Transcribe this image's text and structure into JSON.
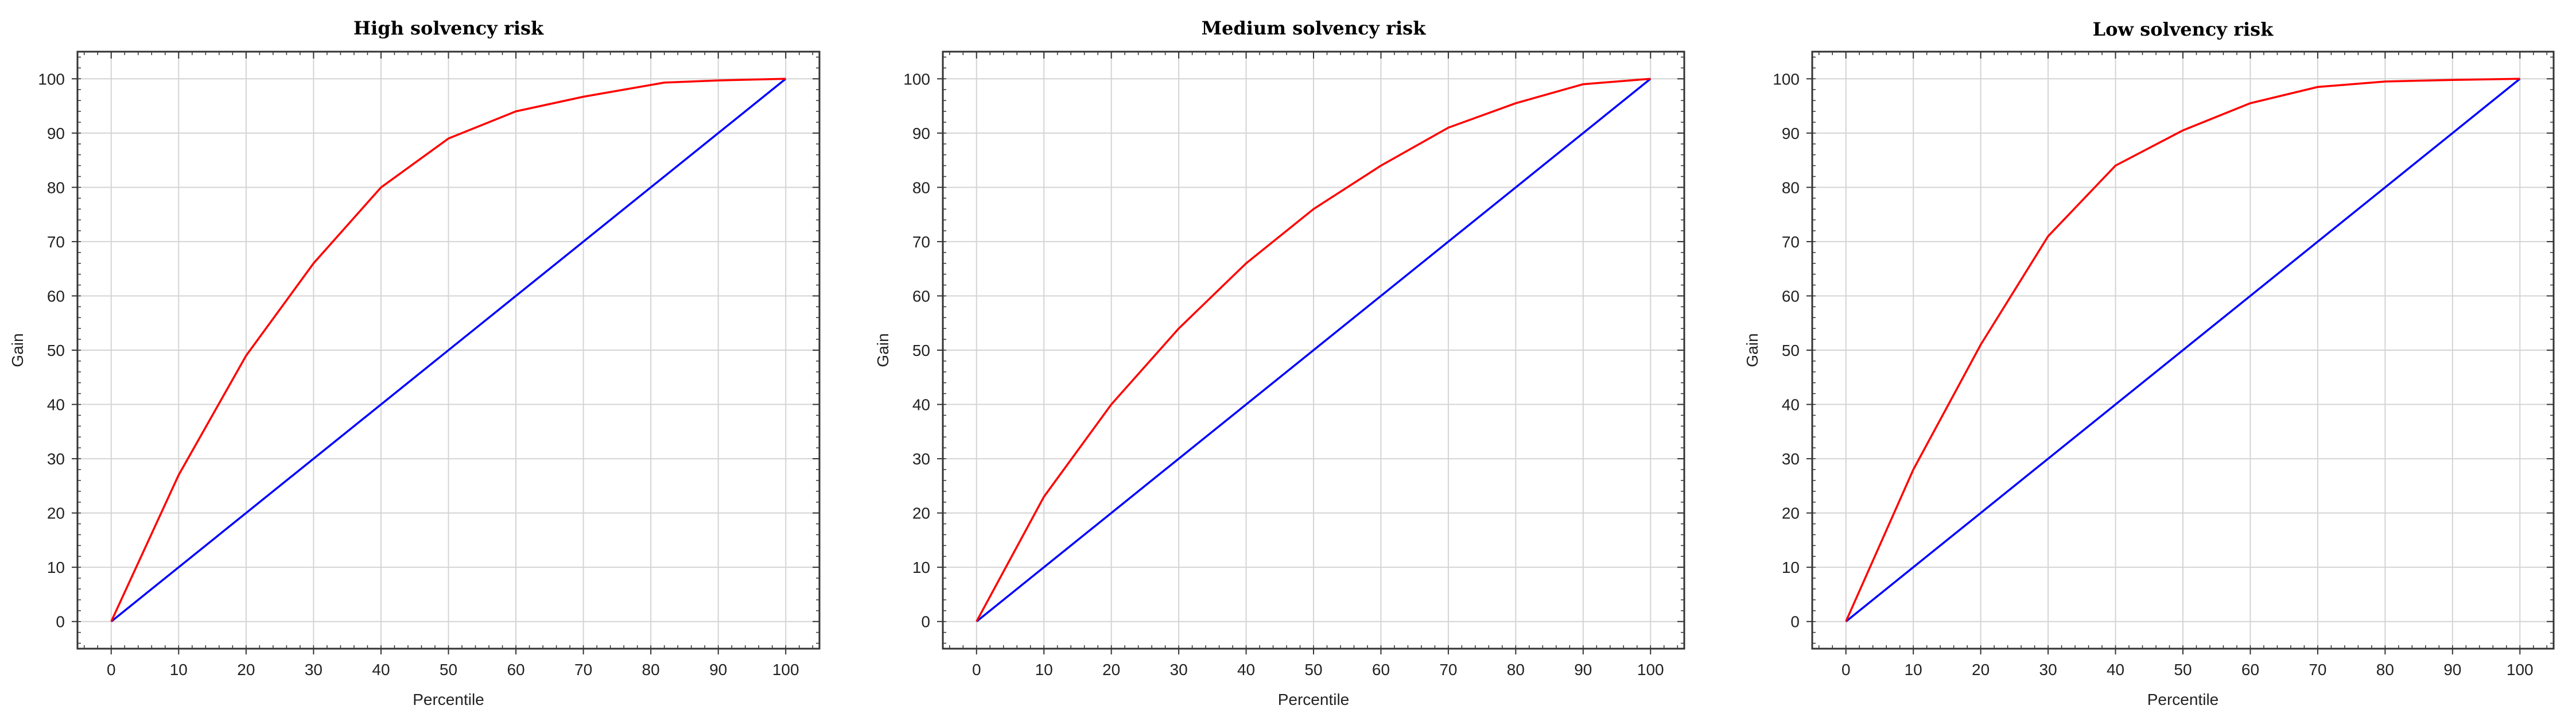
{
  "chart_data": [
    {
      "type": "line",
      "title": "High solvency risk",
      "xlabel": "Percentile",
      "ylabel": "Gain",
      "xlim": [
        -5,
        105
      ],
      "ylim": [
        -5,
        105
      ],
      "xticks": [
        0,
        10,
        20,
        30,
        40,
        50,
        60,
        70,
        80,
        90,
        100
      ],
      "yticks": [
        0,
        10,
        20,
        30,
        40,
        50,
        60,
        70,
        80,
        90,
        100
      ],
      "grid": true,
      "series": [
        {
          "color": "#ff0000",
          "x": [
            0,
            10,
            20,
            30,
            40,
            50,
            60,
            70,
            82,
            90,
            100
          ],
          "y": [
            0,
            27,
            49,
            66,
            80,
            89,
            94,
            96.7,
            99.3,
            99.7,
            100
          ]
        },
        {
          "color": "#0000ff",
          "x": [
            0,
            100
          ],
          "y": [
            0,
            100
          ]
        }
      ]
    },
    {
      "type": "line",
      "title": "Medium solvency risk",
      "xlabel": "Percentile",
      "ylabel": "Gain",
      "xlim": [
        -5,
        105
      ],
      "ylim": [
        -5,
        105
      ],
      "xticks": [
        0,
        10,
        20,
        30,
        40,
        50,
        60,
        70,
        80,
        90,
        100
      ],
      "yticks": [
        0,
        10,
        20,
        30,
        40,
        50,
        60,
        70,
        80,
        90,
        100
      ],
      "grid": true,
      "series": [
        {
          "color": "#ff0000",
          "x": [
            0,
            10,
            20,
            30,
            40,
            50,
            60,
            70,
            80,
            90,
            100
          ],
          "y": [
            0,
            23,
            40,
            54,
            66,
            76,
            84,
            91,
            95.5,
            99,
            100
          ]
        },
        {
          "color": "#0000ff",
          "x": [
            0,
            100
          ],
          "y": [
            0,
            100
          ]
        }
      ]
    },
    {
      "type": "line",
      "title": "Low solvency risk",
      "xlabel": "Percentile",
      "ylabel": "Gain",
      "xlim": [
        -5,
        105
      ],
      "ylim": [
        -5,
        105
      ],
      "xticks": [
        0,
        10,
        20,
        30,
        40,
        50,
        60,
        70,
        80,
        90,
        100
      ],
      "yticks": [
        0,
        10,
        20,
        30,
        40,
        50,
        60,
        70,
        80,
        90,
        100
      ],
      "grid": true,
      "series": [
        {
          "color": "#ff0000",
          "x": [
            0,
            10,
            20,
            30,
            40,
            50,
            60,
            70,
            80,
            90,
            100
          ],
          "y": [
            0,
            28,
            51,
            71,
            84,
            90.5,
            95.5,
            98.5,
            99.5,
            99.8,
            100
          ]
        },
        {
          "color": "#0000ff",
          "x": [
            0,
            100
          ],
          "y": [
            0,
            100
          ]
        }
      ]
    }
  ]
}
